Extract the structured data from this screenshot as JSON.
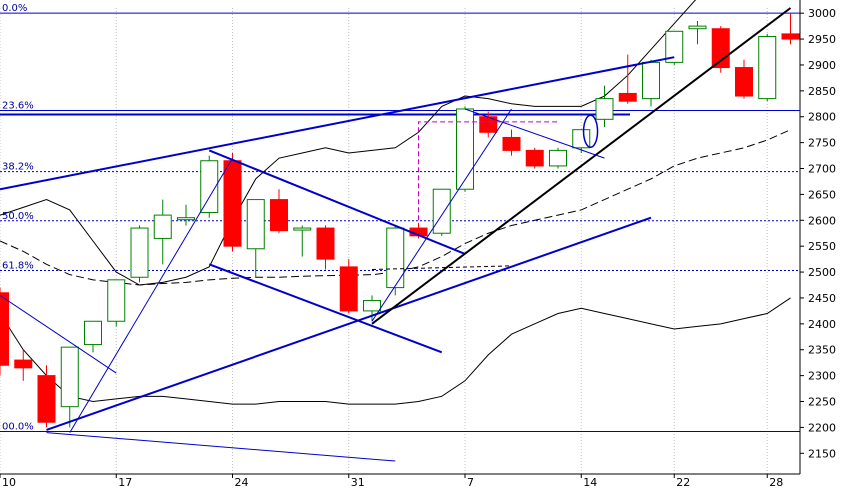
{
  "colors": {
    "up": "#ffffff",
    "up_stroke": "#008000",
    "down": "#ff0000",
    "trend": "#0000cc",
    "fib": "#0000cc",
    "grid": "#c0c0c0",
    "bg": "#ffffff"
  },
  "chart_data": {
    "type": "candlestick",
    "ylim": [
      2110,
      3010
    ],
    "xlim": [
      0,
      857
    ],
    "y_ticks": [
      2150,
      2200,
      2250,
      2300,
      2350,
      2400,
      2450,
      2500,
      2550,
      2600,
      2650,
      2700,
      2750,
      2800,
      2850,
      2900,
      2950,
      3000
    ],
    "x_ticks": [
      {
        "label": "10",
        "idx": 0
      },
      {
        "label": "17",
        "idx": 5
      },
      {
        "label": "24",
        "idx": 10
      },
      {
        "label": "31",
        "idx": 15
      },
      {
        "label": "7",
        "idx": 20
      },
      {
        "label": "14",
        "idx": 25
      },
      {
        "label": "22",
        "idx": 29
      },
      {
        "label": "28",
        "idx": 33
      }
    ],
    "fib_levels": [
      {
        "label": "0.0%",
        "value": 3000
      },
      {
        "label": "23.6%",
        "value": 2812
      },
      {
        "label": "38.2%",
        "value": 2694
      },
      {
        "label": "50.0%",
        "value": 2599
      },
      {
        "label": "61.8%",
        "value": 2503
      },
      {
        "label": "00.0%",
        "value": 2192
      }
    ],
    "candles": [
      {
        "o": 2460,
        "h": 2470,
        "c": 2320,
        "l": 2300
      },
      {
        "o": 2330,
        "h": 2350,
        "c": 2315,
        "l": 2290
      },
      {
        "o": 2300,
        "h": 2320,
        "c": 2210,
        "l": 2200
      },
      {
        "o": 2240,
        "h": 2350,
        "c": 2355,
        "l": 2200
      },
      {
        "o": 2360,
        "h": 2400,
        "c": 2405,
        "l": 2345
      },
      {
        "o": 2405,
        "h": 2480,
        "c": 2485,
        "l": 2395
      },
      {
        "o": 2490,
        "h": 2590,
        "c": 2585,
        "l": 2480
      },
      {
        "o": 2565,
        "h": 2640,
        "c": 2610,
        "l": 2515
      },
      {
        "o": 2605,
        "h": 2630,
        "c": 2605,
        "l": 2590
      },
      {
        "o": 2615,
        "h": 2725,
        "c": 2715,
        "l": 2605
      },
      {
        "o": 2715,
        "h": 2730,
        "c": 2550,
        "l": 2540
      },
      {
        "o": 2545,
        "h": 2640,
        "c": 2640,
        "l": 2490
      },
      {
        "o": 2640,
        "h": 2660,
        "c": 2580,
        "l": 2575
      },
      {
        "o": 2585,
        "h": 2590,
        "c": 2585,
        "l": 2530
      },
      {
        "o": 2585,
        "h": 2590,
        "c": 2525,
        "l": 2505
      },
      {
        "o": 2510,
        "h": 2525,
        "c": 2425,
        "l": 2420
      },
      {
        "o": 2425,
        "h": 2455,
        "c": 2445,
        "l": 2405
      },
      {
        "o": 2470,
        "h": 2590,
        "c": 2585,
        "l": 2455
      },
      {
        "o": 2585,
        "h": 2595,
        "c": 2570,
        "l": 2565
      },
      {
        "o": 2575,
        "h": 2660,
        "c": 2660,
        "l": 2570
      },
      {
        "o": 2660,
        "h": 2820,
        "c": 2815,
        "l": 2655
      },
      {
        "o": 2800,
        "h": 2810,
        "c": 2770,
        "l": 2760
      },
      {
        "o": 2760,
        "h": 2775,
        "c": 2735,
        "l": 2725
      },
      {
        "o": 2735,
        "h": 2740,
        "c": 2705,
        "l": 2700
      },
      {
        "o": 2705,
        "h": 2740,
        "c": 2735,
        "l": 2700
      },
      {
        "o": 2740,
        "h": 2775,
        "c": 2775,
        "l": 2730
      },
      {
        "o": 2795,
        "h": 2860,
        "c": 2835,
        "l": 2780
      },
      {
        "o": 2845,
        "h": 2920,
        "c": 2830,
        "l": 2825
      },
      {
        "o": 2835,
        "h": 2910,
        "c": 2905,
        "l": 2820
      },
      {
        "o": 2905,
        "h": 2965,
        "c": 2965,
        "l": 2900
      },
      {
        "o": 2970,
        "h": 2985,
        "c": 2975,
        "l": 2940
      },
      {
        "o": 2970,
        "h": 2975,
        "c": 2895,
        "l": 2885
      },
      {
        "o": 2895,
        "h": 2910,
        "c": 2840,
        "l": 2835
      },
      {
        "o": 2835,
        "h": 2960,
        "c": 2955,
        "l": 2830
      },
      {
        "o": 2960,
        "h": 3000,
        "c": 2950,
        "l": 2940
      }
    ],
    "bands": {
      "upper": [
        2610,
        2625,
        2640,
        2620,
        2560,
        2500,
        2475,
        2480,
        2490,
        2510,
        2600,
        2680,
        2720,
        2730,
        2740,
        2730,
        2735,
        2740,
        2770,
        2820,
        2840,
        2835,
        2825,
        2820,
        2820,
        2820,
        2840,
        2880,
        2930,
        2980,
        3030,
        3070,
        3080,
        3090,
        3095
      ],
      "mid": [
        2560,
        2540,
        2515,
        2495,
        2485,
        2480,
        2475,
        2478,
        2480,
        2485,
        2488,
        2490,
        2490,
        2492,
        2493,
        2494,
        2495,
        2500,
        2510,
        2530,
        2555,
        2575,
        2590,
        2600,
        2610,
        2620,
        2640,
        2660,
        2680,
        2705,
        2720,
        2730,
        2740,
        2755,
        2775
      ],
      "lower": [
        2420,
        2350,
        2300,
        2260,
        2250,
        2255,
        2260,
        2260,
        2255,
        2250,
        2245,
        2245,
        2250,
        2250,
        2250,
        2245,
        2245,
        2245,
        2250,
        2260,
        2290,
        2340,
        2380,
        2400,
        2420,
        2430,
        2420,
        2410,
        2400,
        2390,
        2395,
        2400,
        2410,
        2420,
        2450
      ]
    }
  }
}
